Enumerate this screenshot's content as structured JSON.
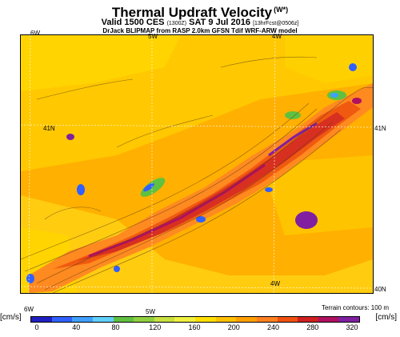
{
  "header": {
    "title": "Thermal Updraft Velocity",
    "title_sup": "(W*)",
    "valid_main": "Valid 1500 CES",
    "valid_small": "(1300Z)",
    "valid_date": "SAT 9 Jul 2016",
    "valid_fcst": "[13hrFcst@0506z]",
    "model_line": "DrJack BLIPMAP from RASP 2.0km GFSN Tdif WRF-ARW model"
  },
  "map": {
    "labels": {
      "lon_6w_top": "6W",
      "lon_5w_top": "5W",
      "lon_4w_top": "4W",
      "lat_41n_left": "41N",
      "lat_41n_right": "41N",
      "lon_4w_bottom": "4W",
      "lat_40n_right": "40N",
      "lon_6w_bottom": "6W",
      "lon_5w_bottom": "5W"
    },
    "terrain_note": "Terrain contours: 100 m"
  },
  "legend": {
    "unit_left": "[cm/s]",
    "unit_right": "[cm/s]",
    "ticks": [
      "0",
      "40",
      "80",
      "120",
      "160",
      "200",
      "240",
      "280",
      "320"
    ],
    "colors": [
      "#2020c0",
      "#3060ff",
      "#40a0ff",
      "#60d0ff",
      "#60c040",
      "#90d040",
      "#c8e040",
      "#f0f040",
      "#ffe000",
      "#ffc000",
      "#ffa000",
      "#ff8020",
      "#f05010",
      "#d02020",
      "#b01060",
      "#8020a0"
    ]
  }
}
